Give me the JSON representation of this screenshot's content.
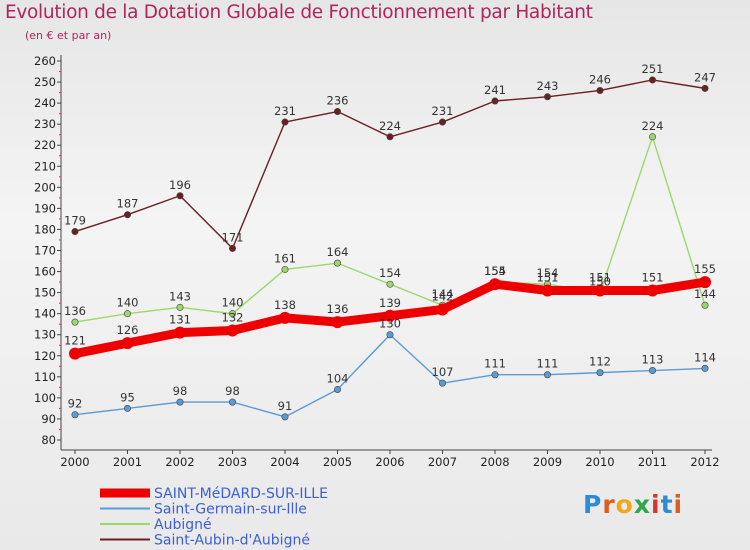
{
  "header": {
    "title": "Evolution de la Dotation Globale de Fonctionnement par Habitant",
    "subtitle": "(en € et par an)"
  },
  "logo": {
    "text": "Proxiti",
    "letters": [
      "P",
      "r",
      "o",
      "x",
      "i",
      "t",
      "i"
    ]
  },
  "colors": {
    "saint_medard": "#ee0000",
    "saint_germain": "#5b9bd5",
    "aubigne": "#9bd86a",
    "saint_aubin": "#6b1f24",
    "axis_text": "#222222"
  },
  "chart_data": {
    "type": "line",
    "x": [
      "2000",
      "2001",
      "2002",
      "2003",
      "2004",
      "2005",
      "2006",
      "2007",
      "2008",
      "2009",
      "2010",
      "2011",
      "2012"
    ],
    "ylim": [
      80,
      260
    ],
    "yticks": [
      80,
      90,
      100,
      110,
      120,
      130,
      140,
      150,
      160,
      170,
      180,
      190,
      200,
      210,
      220,
      230,
      240,
      250,
      260
    ],
    "grid": false,
    "legend_position": "bottom-left",
    "series": [
      {
        "name": "SAINT-MéDARD-SUR-ILLE",
        "key": "saint_medard",
        "style": "thick",
        "values": [
          121,
          126,
          131,
          132,
          138,
          136,
          139,
          142,
          154,
          151,
          151,
          151,
          155
        ]
      },
      {
        "name": "Saint-Germain-sur-Ille",
        "key": "saint_germain",
        "style": "thin",
        "values": [
          92,
          95,
          98,
          98,
          91,
          104,
          130,
          107,
          111,
          111,
          112,
          113,
          114
        ]
      },
      {
        "name": "Aubigné",
        "key": "aubigne",
        "style": "thin",
        "values": [
          136,
          140,
          143,
          140,
          161,
          164,
          154,
          144,
          155,
          154,
          150,
          224,
          144
        ]
      },
      {
        "name": "Saint-Aubin-d'Aubigné",
        "key": "saint_aubin",
        "style": "thin",
        "values": [
          179,
          187,
          196,
          171,
          231,
          236,
          224,
          231,
          241,
          243,
          246,
          251,
          247
        ]
      }
    ]
  }
}
